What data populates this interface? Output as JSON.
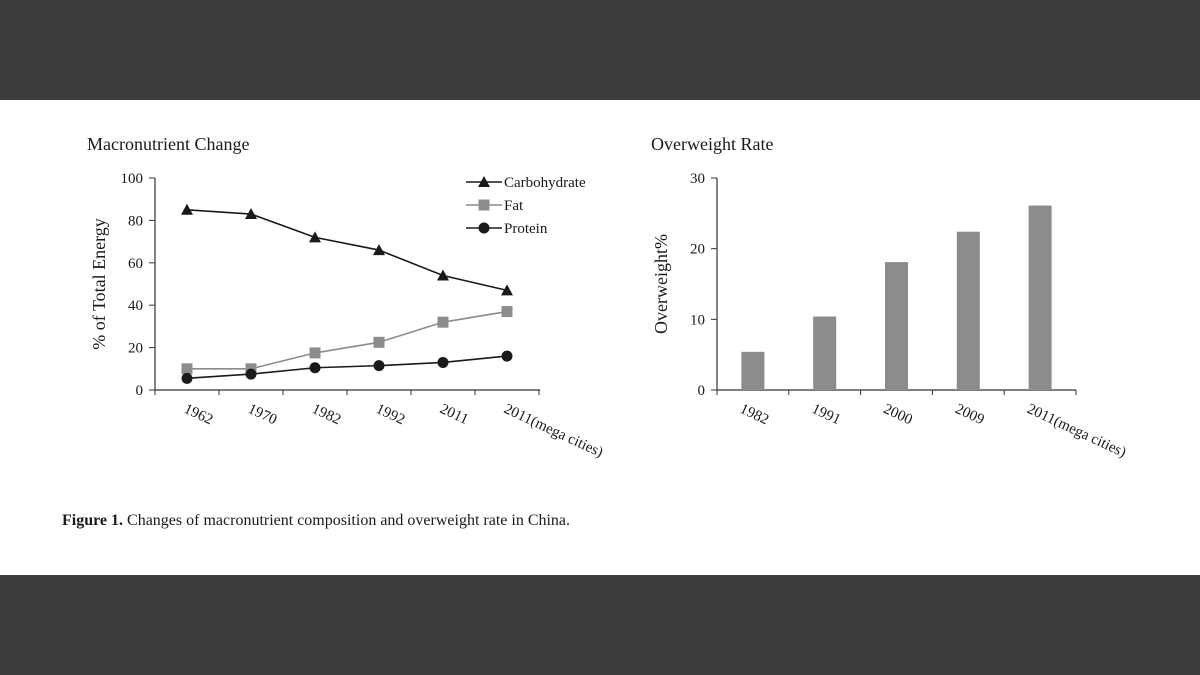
{
  "chart_data": [
    {
      "type": "line",
      "title": "Macronutrient Change",
      "xlabel": "",
      "ylabel": "% of Total Energy",
      "ylim": [
        0,
        100
      ],
      "yticks": [
        "0",
        "20",
        "40",
        "60",
        "80",
        "100"
      ],
      "categories": [
        "1962",
        "1970",
        "1982",
        "1992",
        "2011",
        "2011(mega cities)"
      ],
      "series": [
        {
          "name": "Carbohydrate",
          "marker": "triangle",
          "color": "#1a1a1a",
          "values": [
            85,
            83,
            72,
            66,
            54,
            47
          ]
        },
        {
          "name": "Fat",
          "marker": "square",
          "color": "#8c8c8c",
          "values": [
            10,
            10,
            17.5,
            22.5,
            32,
            37
          ]
        },
        {
          "name": "Protein",
          "marker": "circle",
          "color": "#1a1a1a",
          "values": [
            5.5,
            7.5,
            10.5,
            11.5,
            13,
            16
          ]
        }
      ],
      "legend": "top-right",
      "grid": false
    },
    {
      "type": "bar",
      "title": "Overweight Rate",
      "xlabel": "",
      "ylabel": "Overweight%",
      "ylim": [
        0,
        30
      ],
      "yticks": [
        "0",
        "10",
        "20",
        "30"
      ],
      "categories": [
        "1982",
        "1991",
        "2000",
        "2009",
        "2011(mega cities)"
      ],
      "values": [
        5.4,
        10.4,
        18.1,
        22.4,
        26.1
      ],
      "bar_color": "#8c8c8c",
      "grid": false
    }
  ],
  "caption": {
    "bold": "Figure 1.",
    "text": " Changes of macronutrient composition and overweight rate in China."
  }
}
